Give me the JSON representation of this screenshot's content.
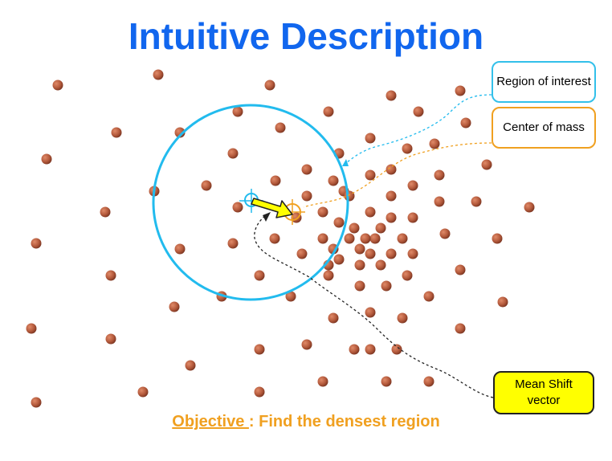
{
  "title": "Intuitive Description",
  "callouts": {
    "region_of_interest": "Region of interest",
    "center_of_mass": "Center of mass",
    "mean_shift_vector": "Mean Shift vector"
  },
  "objective": {
    "keyword": "Objective ",
    "text": ": Find the densest region"
  },
  "colors": {
    "title": "#1166ee",
    "point": "#b45a3c",
    "region": "#22bbee",
    "center_of_mass": "#f0a020",
    "vector": "#ffff00"
  }
}
